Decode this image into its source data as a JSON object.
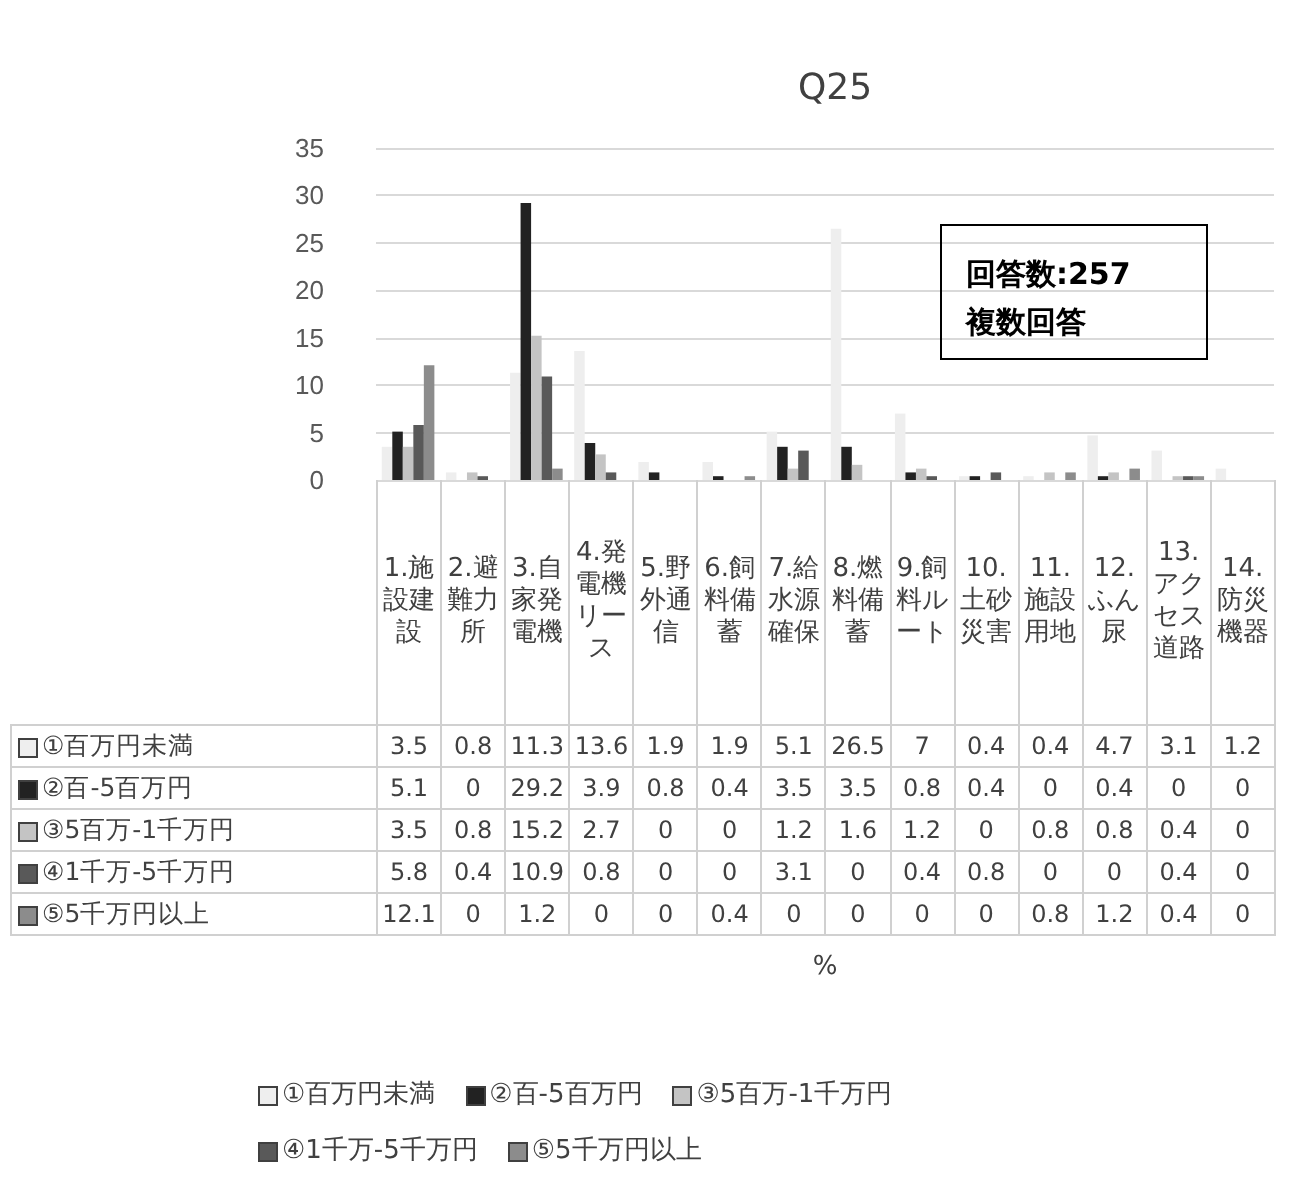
{
  "chart_data": {
    "type": "bar",
    "title": "Q25",
    "annotations": [
      "回答数:257",
      "複数回答",
      "%"
    ],
    "categories": [
      "1.施設建設",
      "2.避難力所",
      "3.自家発電機",
      "4.発電機リース",
      "5.野外通信",
      "6.飼料備蓄",
      "7.給水源確保",
      "8.燃料備蓄",
      "9.飼料ルート",
      "10.土砂災害",
      "11.施設用地",
      "12.ふん尿",
      "13.アクセス道路",
      "14.防災機器"
    ],
    "series": [
      {
        "name": "①百万円未満",
        "color": "#eeeeee",
        "values": [
          3.5,
          0.8,
          11.3,
          13.6,
          1.9,
          1.9,
          5.1,
          26.5,
          7,
          0.4,
          0.4,
          4.7,
          3.1,
          1.2
        ]
      },
      {
        "name": "②百-5百万円",
        "color": "#222222",
        "values": [
          5.1,
          0,
          29.2,
          3.9,
          0.8,
          0.4,
          3.5,
          3.5,
          0.8,
          0.4,
          0,
          0.4,
          0,
          0
        ]
      },
      {
        "name": "③5百万-1千万円",
        "color": "#c4c4c4",
        "values": [
          3.5,
          0.8,
          15.2,
          2.7,
          0,
          0,
          1.2,
          1.6,
          1.2,
          0,
          0.8,
          0.8,
          0.4,
          0
        ]
      },
      {
        "name": "④1千万-5千万円",
        "color": "#595959",
        "values": [
          5.8,
          0.4,
          10.9,
          0.8,
          0,
          0,
          3.1,
          0,
          0.4,
          0.8,
          0,
          0,
          0.4,
          0
        ]
      },
      {
        "name": "⑤5千万円以上",
        "color": "#8c8c8c",
        "values": [
          12.1,
          0,
          1.2,
          0,
          0,
          0.4,
          0,
          0,
          0,
          0,
          0.8,
          1.2,
          0.4,
          0
        ]
      }
    ],
    "ylim": [
      0,
      35
    ],
    "yticks": [
      0,
      5,
      10,
      15,
      20,
      25,
      30,
      35
    ],
    "grid": "y",
    "legend": "bottom",
    "data_labels": true
  }
}
